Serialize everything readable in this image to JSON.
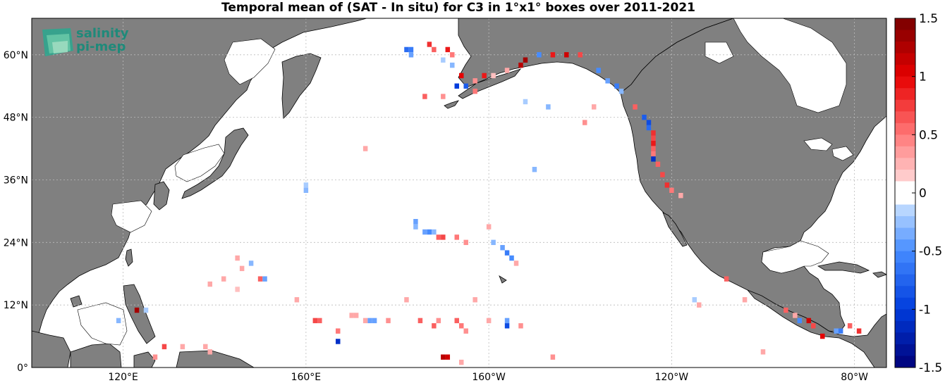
{
  "title": "Temporal mean of (SAT - In situ) for C3 in 1°x1° boxes over 2011-2021",
  "logo": {
    "line1": "salinity",
    "line2": "pi-mep"
  },
  "map": {
    "projection": "equirectangular",
    "lon_range": [
      100,
      -73
    ],
    "lat_range": [
      0,
      67
    ],
    "land_color": "#808080",
    "ocean_color": "#ffffff",
    "grid": "dotted"
  },
  "lat_ticks": [
    {
      "value": 0,
      "label": "0°"
    },
    {
      "value": 12,
      "label": "12°N"
    },
    {
      "value": 24,
      "label": "24°N"
    },
    {
      "value": 36,
      "label": "36°N"
    },
    {
      "value": 48,
      "label": "48°N"
    },
    {
      "value": 60,
      "label": "60°N"
    }
  ],
  "lon_ticks": [
    {
      "value": 120,
      "label": "120°E"
    },
    {
      "value": 160,
      "label": "160°E"
    },
    {
      "value": -160,
      "label": "160°W"
    },
    {
      "value": -120,
      "label": "120°W"
    },
    {
      "value": -80,
      "label": "80°W"
    }
  ],
  "colorbar": {
    "range": [
      -1.5,
      1.5
    ],
    "ticks": [
      "1.5",
      "1",
      "0.5",
      "0",
      "-0.5",
      "-1",
      "-1.5"
    ],
    "tick_values": [
      1.5,
      1,
      0.5,
      0,
      -0.5,
      -1,
      -1.5
    ],
    "colormap": "blue-white-red"
  },
  "chart_data": {
    "type": "heatmap",
    "title": "Temporal mean of (SAT - In situ) for C3 in 1°x1° boxes over 2011-2021",
    "xlabel": "",
    "ylabel": "",
    "cells": [
      {
        "lon": -178,
        "lat": 61,
        "value": -0.7
      },
      {
        "lon": -177,
        "lat": 61,
        "value": -0.6
      },
      {
        "lon": -177,
        "lat": 60,
        "value": -0.4
      },
      {
        "lon": -173,
        "lat": 62,
        "value": 0.8
      },
      {
        "lon": -172,
        "lat": 61,
        "value": 0.6
      },
      {
        "lon": -169,
        "lat": 61,
        "value": 0.9
      },
      {
        "lon": -168,
        "lat": 60,
        "value": 0.5
      },
      {
        "lon": -170,
        "lat": 59,
        "value": -0.2
      },
      {
        "lon": -168,
        "lat": 58,
        "value": -0.3
      },
      {
        "lon": -166,
        "lat": 56,
        "value": 1.0
      },
      {
        "lon": -167,
        "lat": 54,
        "value": -1.0
      },
      {
        "lon": -165,
        "lat": 54,
        "value": -0.8
      },
      {
        "lon": -163,
        "lat": 55,
        "value": 0.4
      },
      {
        "lon": -161,
        "lat": 56,
        "value": 0.9
      },
      {
        "lon": -159,
        "lat": 56,
        "value": 0.2
      },
      {
        "lon": -156,
        "lat": 57,
        "value": 0.3
      },
      {
        "lon": -153,
        "lat": 58,
        "value": 1.2
      },
      {
        "lon": -152,
        "lat": 59,
        "value": 1.3
      },
      {
        "lon": -149,
        "lat": 60,
        "value": -0.5
      },
      {
        "lon": -146,
        "lat": 60,
        "value": 0.9
      },
      {
        "lon": -143,
        "lat": 60,
        "value": 1.1
      },
      {
        "lon": -140,
        "lat": 60,
        "value": 0.7
      },
      {
        "lon": -136,
        "lat": 57,
        "value": -0.5
      },
      {
        "lon": -134,
        "lat": 55,
        "value": -0.4
      },
      {
        "lon": -132,
        "lat": 54,
        "value": -0.6
      },
      {
        "lon": -131,
        "lat": 53,
        "value": -0.3
      },
      {
        "lon": -128,
        "lat": 50,
        "value": 0.6
      },
      {
        "lon": -126,
        "lat": 48,
        "value": -0.8
      },
      {
        "lon": -125,
        "lat": 47,
        "value": -0.9
      },
      {
        "lon": -125,
        "lat": 46,
        "value": -0.7
      },
      {
        "lon": -124,
        "lat": 45,
        "value": 0.8
      },
      {
        "lon": -124,
        "lat": 44,
        "value": 0.7
      },
      {
        "lon": -124,
        "lat": 43,
        "value": 0.9
      },
      {
        "lon": -124,
        "lat": 42,
        "value": 0.6
      },
      {
        "lon": -124,
        "lat": 41,
        "value": 0.5
      },
      {
        "lon": -124,
        "lat": 40,
        "value": -1.1
      },
      {
        "lon": -123,
        "lat": 39,
        "value": 0.6
      },
      {
        "lon": -122,
        "lat": 37,
        "value": 0.7
      },
      {
        "lon": -121,
        "lat": 35,
        "value": 0.8
      },
      {
        "lon": -120,
        "lat": 34,
        "value": 0.5
      },
      {
        "lon": -118,
        "lat": 33,
        "value": 0.3
      },
      {
        "lon": -147,
        "lat": 50,
        "value": -0.3
      },
      {
        "lon": -152,
        "lat": 51,
        "value": -0.2
      },
      {
        "lon": -139,
        "lat": 47,
        "value": 0.4
      },
      {
        "lon": -137,
        "lat": 50,
        "value": 0.3
      },
      {
        "lon": -163,
        "lat": 53,
        "value": 0.5
      },
      {
        "lon": -170,
        "lat": 52,
        "value": 0.4
      },
      {
        "lon": -174,
        "lat": 52,
        "value": 0.6
      },
      {
        "lon": 173,
        "lat": 42,
        "value": 0.3
      },
      {
        "lon": -150,
        "lat": 38,
        "value": -0.3
      },
      {
        "lon": 160,
        "lat": 34,
        "value": -0.3
      },
      {
        "lon": 160,
        "lat": 35,
        "value": -0.2
      },
      {
        "lon": -176,
        "lat": 28,
        "value": -0.4
      },
      {
        "lon": -176,
        "lat": 27,
        "value": -0.3
      },
      {
        "lon": -174,
        "lat": 26,
        "value": -0.4
      },
      {
        "lon": -173,
        "lat": 26,
        "value": -0.5
      },
      {
        "lon": -172,
        "lat": 26,
        "value": -0.3
      },
      {
        "lon": -171,
        "lat": 25,
        "value": 0.6
      },
      {
        "lon": -170,
        "lat": 25,
        "value": 0.7
      },
      {
        "lon": -167,
        "lat": 25,
        "value": 0.5
      },
      {
        "lon": -165,
        "lat": 24,
        "value": 0.4
      },
      {
        "lon": -160,
        "lat": 27,
        "value": 0.3
      },
      {
        "lon": -159,
        "lat": 24,
        "value": -0.3
      },
      {
        "lon": -157,
        "lat": 23,
        "value": -0.4
      },
      {
        "lon": -156,
        "lat": 22,
        "value": -0.6
      },
      {
        "lon": -155,
        "lat": 21,
        "value": -0.5
      },
      {
        "lon": -154,
        "lat": 20,
        "value": 0.3
      },
      {
        "lon": 145,
        "lat": 21,
        "value": 0.3
      },
      {
        "lon": 146,
        "lat": 19,
        "value": 0.3
      },
      {
        "lon": 148,
        "lat": 20,
        "value": -0.3
      },
      {
        "lon": 142,
        "lat": 17,
        "value": 0.3
      },
      {
        "lon": 145,
        "lat": 15,
        "value": 0.2
      },
      {
        "lon": 150,
        "lat": 17,
        "value": 0.6
      },
      {
        "lon": 151,
        "lat": 17,
        "value": -0.4
      },
      {
        "lon": 139,
        "lat": 16,
        "value": 0.3
      },
      {
        "lon": 158,
        "lat": 13,
        "value": 0.3
      },
      {
        "lon": 162,
        "lat": 9,
        "value": 0.7
      },
      {
        "lon": 163,
        "lat": 9,
        "value": 0.6
      },
      {
        "lon": 167,
        "lat": 7,
        "value": 0.5
      },
      {
        "lon": 167,
        "lat": 5,
        "value": -1.1
      },
      {
        "lon": 170,
        "lat": 10,
        "value": 0.3
      },
      {
        "lon": 171,
        "lat": 10,
        "value": 0.3
      },
      {
        "lon": 173,
        "lat": 9,
        "value": 0.3
      },
      {
        "lon": 174,
        "lat": 9,
        "value": -0.4
      },
      {
        "lon": 175,
        "lat": 9,
        "value": -0.4
      },
      {
        "lon": 178,
        "lat": 9,
        "value": 0.4
      },
      {
        "lon": -178,
        "lat": 13,
        "value": 0.3
      },
      {
        "lon": -175,
        "lat": 9,
        "value": 0.6
      },
      {
        "lon": -172,
        "lat": 8,
        "value": 0.6
      },
      {
        "lon": -171,
        "lat": 9,
        "value": 0.4
      },
      {
        "lon": -167,
        "lat": 9,
        "value": 0.6
      },
      {
        "lon": -166,
        "lat": 8,
        "value": 0.5
      },
      {
        "lon": -165,
        "lat": 7,
        "value": 0.4
      },
      {
        "lon": -163,
        "lat": 13,
        "value": 0.3
      },
      {
        "lon": -160,
        "lat": 9,
        "value": 0.3
      },
      {
        "lon": -156,
        "lat": 9,
        "value": -0.4
      },
      {
        "lon": -156,
        "lat": 8,
        "value": -0.9
      },
      {
        "lon": -153,
        "lat": 8,
        "value": 0.4
      },
      {
        "lon": -170,
        "lat": 2,
        "value": 1.2
      },
      {
        "lon": -169,
        "lat": 2,
        "value": 1.1
      },
      {
        "lon": -166,
        "lat": 1,
        "value": 0.3
      },
      {
        "lon": -146,
        "lat": 2,
        "value": 0.4
      },
      {
        "lon": 123,
        "lat": 11,
        "value": 1.3
      },
      {
        "lon": 125,
        "lat": 11,
        "value": -0.2
      },
      {
        "lon": 119,
        "lat": 9,
        "value": -0.3
      },
      {
        "lon": 127,
        "lat": 2,
        "value": 0.4
      },
      {
        "lon": 129,
        "lat": 4,
        "value": 0.7
      },
      {
        "lon": 133,
        "lat": 4,
        "value": 0.3
      },
      {
        "lon": 138,
        "lat": 4,
        "value": 0.3
      },
      {
        "lon": 139,
        "lat": 3,
        "value": 0.3
      },
      {
        "lon": -108,
        "lat": 17,
        "value": 0.6
      },
      {
        "lon": -115,
        "lat": 13,
        "value": -0.2
      },
      {
        "lon": -114,
        "lat": 12,
        "value": 0.3
      },
      {
        "lon": -104,
        "lat": 13,
        "value": 0.3
      },
      {
        "lon": -95,
        "lat": 11,
        "value": 0.6
      },
      {
        "lon": -93,
        "lat": 10,
        "value": 0.3
      },
      {
        "lon": -92,
        "lat": 9,
        "value": -0.5
      },
      {
        "lon": -90,
        "lat": 9,
        "value": 1.1
      },
      {
        "lon": -89,
        "lat": 8,
        "value": 0.7
      },
      {
        "lon": -87,
        "lat": 6,
        "value": 1.0
      },
      {
        "lon": -84,
        "lat": 7,
        "value": -0.4
      },
      {
        "lon": -83,
        "lat": 7,
        "value": -0.6
      },
      {
        "lon": -81,
        "lat": 8,
        "value": 0.6
      },
      {
        "lon": -79,
        "lat": 7,
        "value": 0.8
      },
      {
        "lon": -100,
        "lat": 3,
        "value": 0.3
      }
    ]
  }
}
